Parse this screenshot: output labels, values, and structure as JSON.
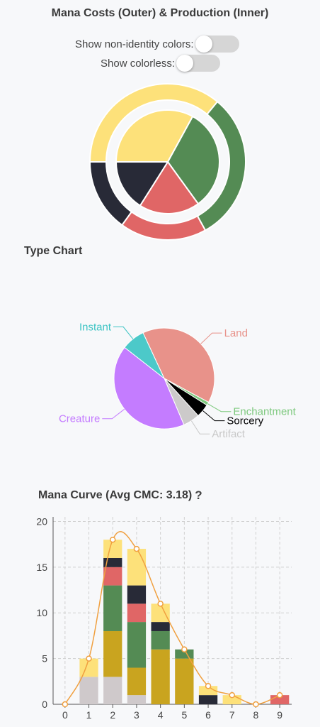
{
  "mana_section": {
    "title": "Mana Costs (Outer) & Production (Inner)",
    "toggle_non_identity": {
      "label": "Show non-identity colors:",
      "on": false
    },
    "toggle_colorless": {
      "label": "Show colorless:",
      "on": false
    }
  },
  "type_section": {
    "title": "Type Chart"
  },
  "curve_section": {
    "title": "Mana Curve (Avg CMC: 3.18)",
    "help_icon": "question-mark-icon"
  },
  "colors": {
    "white": "#fde17a",
    "black": "#282a37",
    "red": "#e06666",
    "green": "#548b54",
    "colorless": "#cfc9cb",
    "gold": "#c9a41f",
    "curve_line": "#f0a040",
    "toggle_track": "#d6d6d6"
  },
  "chart_data": [
    {
      "type": "pie",
      "subtype": "nested-donut",
      "title": "Mana Costs (Outer) & Production (Inner)",
      "outer": {
        "name": "Mana Costs",
        "slices": [
          {
            "label": "White",
            "value": 36,
            "color": "#fde17a"
          },
          {
            "label": "Green",
            "value": 31,
            "color": "#548b54"
          },
          {
            "label": "Red",
            "value": 18,
            "color": "#e06666"
          },
          {
            "label": "Black",
            "value": 15,
            "color": "#282a37"
          }
        ]
      },
      "inner": {
        "name": "Production",
        "slices": [
          {
            "label": "White",
            "value": 33,
            "color": "#fde17a"
          },
          {
            "label": "Green",
            "value": 32,
            "color": "#548b54"
          },
          {
            "label": "Red",
            "value": 19,
            "color": "#e06666"
          },
          {
            "label": "Black",
            "value": 16,
            "color": "#282a37"
          }
        ]
      }
    },
    {
      "type": "pie",
      "title": "Type Chart",
      "slices": [
        {
          "label": "Land",
          "value": 37,
          "color": "#e8928a",
          "label_color": "#e8928a"
        },
        {
          "label": "Enchantment",
          "value": 1,
          "color": "#7ec97e",
          "label_color": "#7ec97e"
        },
        {
          "label": "Sorcery",
          "value": 4,
          "color": "#000000",
          "label_color": "#000000"
        },
        {
          "label": "Artifact",
          "value": 5,
          "color": "#cccaca",
          "label_color": "#c8c8c8"
        },
        {
          "label": "Creature",
          "value": 39,
          "color": "#c47cff",
          "label_color": "#c47cff"
        },
        {
          "label": "Instant",
          "value": 7,
          "color": "#4cc9c9",
          "label_color": "#3cc4c4"
        }
      ]
    },
    {
      "type": "bar",
      "stacked": true,
      "title": "Mana Curve (Avg CMC: 3.18)",
      "categories": [
        "0",
        "1",
        "2",
        "3",
        "4",
        "5",
        "6",
        "7",
        "8",
        "9"
      ],
      "series": [
        {
          "key": "colorless",
          "color": "#cfc9cb",
          "values": [
            0,
            3,
            3,
            1,
            0,
            0,
            0,
            0,
            0,
            0
          ]
        },
        {
          "key": "gold",
          "color": "#c9a41f",
          "values": [
            0,
            0,
            5,
            3,
            6,
            5,
            0,
            0,
            0,
            0
          ]
        },
        {
          "key": "green",
          "color": "#548b54",
          "values": [
            0,
            0,
            5,
            5,
            2,
            1,
            0,
            0,
            0,
            0
          ]
        },
        {
          "key": "black",
          "color": "#282a37",
          "values": [
            0,
            0,
            0,
            0,
            1,
            0,
            1,
            0,
            0,
            0
          ]
        },
        {
          "key": "red",
          "color": "#e06666",
          "values": [
            0,
            0,
            2,
            2,
            0,
            0,
            0,
            0,
            0,
            1
          ]
        },
        {
          "key": "black2",
          "color": "#282a37",
          "values": [
            0,
            0,
            1,
            2,
            0,
            0,
            0,
            0,
            0,
            0
          ]
        },
        {
          "key": "white",
          "color": "#fde17a",
          "values": [
            0,
            2,
            2,
            4,
            2,
            0,
            1,
            1,
            0,
            0
          ]
        }
      ],
      "line": {
        "key": "total",
        "color": "#f0a040",
        "values": [
          0,
          5,
          18,
          17,
          11,
          6,
          2,
          1,
          0,
          1
        ]
      },
      "yticks": [
        0,
        5,
        10,
        15,
        20
      ],
      "ylim": [
        0,
        20.5
      ],
      "grid": true
    }
  ]
}
